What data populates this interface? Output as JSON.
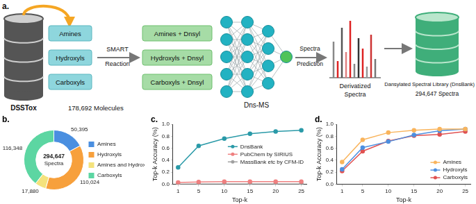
{
  "diagram": {
    "panel": "a.",
    "source": "DSSTox",
    "source_count": "178,692 Molecules",
    "groups": [
      "Amines",
      "Hydroxyls",
      "Carboxyls"
    ],
    "reaction": "SMART Reaction",
    "derivatized": [
      "Amines + Dnsyl",
      "Hydroxyls + Dnsyl",
      "Carboxyls + Dnsyl"
    ],
    "model": "Dns-MS",
    "prediction": "Spectra Prediction",
    "spectra": "Derivatized Spectra",
    "library": "Dansylated Spectral Library (DnsBank)",
    "library_count": "294,647 Spectra"
  },
  "chart_data": [
    {
      "type": "doughnut",
      "title": "b.",
      "categories": [
        "Amines",
        "Hydroxyls",
        "Amines and Hydroxyls",
        "Carboxyls"
      ],
      "values": [
        50395,
        110024,
        17880,
        116348
      ],
      "value_labels": [
        "50,395",
        "110,024",
        "17,880",
        "116,348"
      ],
      "colors": [
        "#4a8fe0",
        "#f7a03c",
        "#f4e27c",
        "#5cd6a2"
      ],
      "data_labels": true,
      "legend": "right",
      "annotations": [
        "294,647",
        "Spectra"
      ]
    },
    {
      "type": "line",
      "title": "c.",
      "x": [
        1,
        5,
        10,
        15,
        20,
        25
      ],
      "series": [
        {
          "name": "DnsBank",
          "color": "#2a9aa8",
          "values": [
            0.28,
            0.64,
            0.76,
            0.84,
            0.88,
            0.9
          ]
        },
        {
          "name": "PubChem by SIRIUS",
          "color": "#ef8080",
          "values": [
            0.03,
            0.04,
            0.045,
            0.045,
            0.045,
            0.045
          ]
        },
        {
          "name": "MassBank etc by CFM-ID",
          "color": "#a0a0a0",
          "values": [
            0.0,
            0.005,
            0.005,
            0.005,
            0.005,
            0.005
          ]
        }
      ],
      "xlim": [
        0,
        26
      ],
      "xticks": [
        1,
        5,
        10,
        15,
        20,
        25
      ],
      "ylim": [
        0,
        1
      ],
      "yticks": [
        {
          "value": 0,
          "label": "0.0"
        },
        {
          "value": 0.2,
          "label": "0.2"
        },
        {
          "value": 0.4,
          "label": "0.4"
        },
        {
          "value": 0.6,
          "label": "0.6"
        },
        {
          "value": 0.8,
          "label": "0.8"
        },
        {
          "value": 1,
          "label": "1.0"
        }
      ],
      "x_label": "Top-k",
      "y_label": "Top-k Accuracy (%)",
      "grid": false,
      "legend": "right",
      "marker": "circle"
    },
    {
      "type": "line",
      "title": "d.",
      "x": [
        1,
        5,
        10,
        15,
        20,
        25
      ],
      "series": [
        {
          "name": "Amines",
          "color": "#f9b45c",
          "values": [
            0.37,
            0.74,
            0.86,
            0.9,
            0.92,
            0.92
          ]
        },
        {
          "name": "Hydroxyls",
          "color": "#4d8fe0",
          "values": [
            0.25,
            0.61,
            0.71,
            0.82,
            0.89,
            0.92
          ]
        },
        {
          "name": "Carboxyls",
          "color": "#e05252",
          "values": [
            0.22,
            0.55,
            0.72,
            0.81,
            0.83,
            0.88
          ]
        }
      ],
      "xlim": [
        0,
        26
      ],
      "xticks": [
        1,
        5,
        10,
        15,
        20,
        25
      ],
      "ylim": [
        0,
        1
      ],
      "yticks": [
        {
          "value": 0,
          "label": "0.0"
        },
        {
          "value": 0.2,
          "label": "0.2"
        },
        {
          "value": 0.4,
          "label": "0.4"
        },
        {
          "value": 0.6,
          "label": "0.6"
        },
        {
          "value": 0.8,
          "label": "0.8"
        },
        {
          "value": 1,
          "label": "1.0"
        }
      ],
      "x_label": "Top-k",
      "y_label": "Top-k Accuracy (%)",
      "grid": false,
      "legend": "lower right",
      "marker": "circle"
    }
  ]
}
